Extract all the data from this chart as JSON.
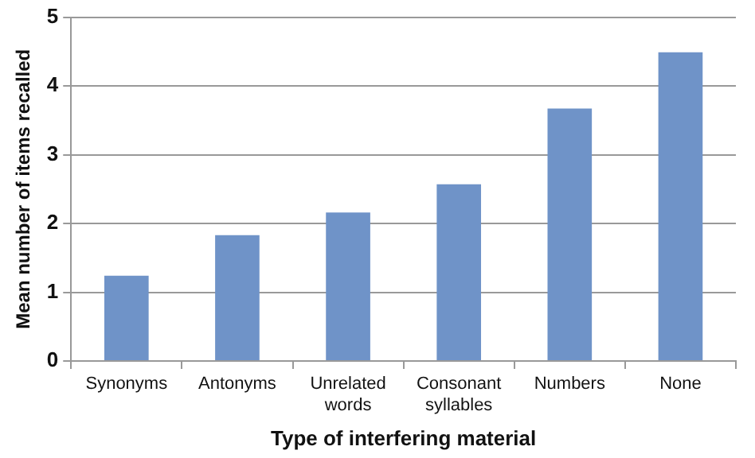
{
  "chart_data": {
    "type": "bar",
    "xlabel": "Type of interfering material",
    "ylabel": "Mean number of items recalled",
    "categories": [
      "Synonyms",
      "Antonyms",
      "Unrelated words",
      "Consonant syllables",
      "Numbers",
      "None"
    ],
    "values": [
      1.24,
      1.83,
      2.16,
      2.57,
      3.67,
      4.49
    ],
    "color": "#6f93c8",
    "ylim": [
      0,
      5
    ],
    "yticks": [
      0,
      1,
      2,
      3,
      4,
      5
    ],
    "grid": "y"
  }
}
